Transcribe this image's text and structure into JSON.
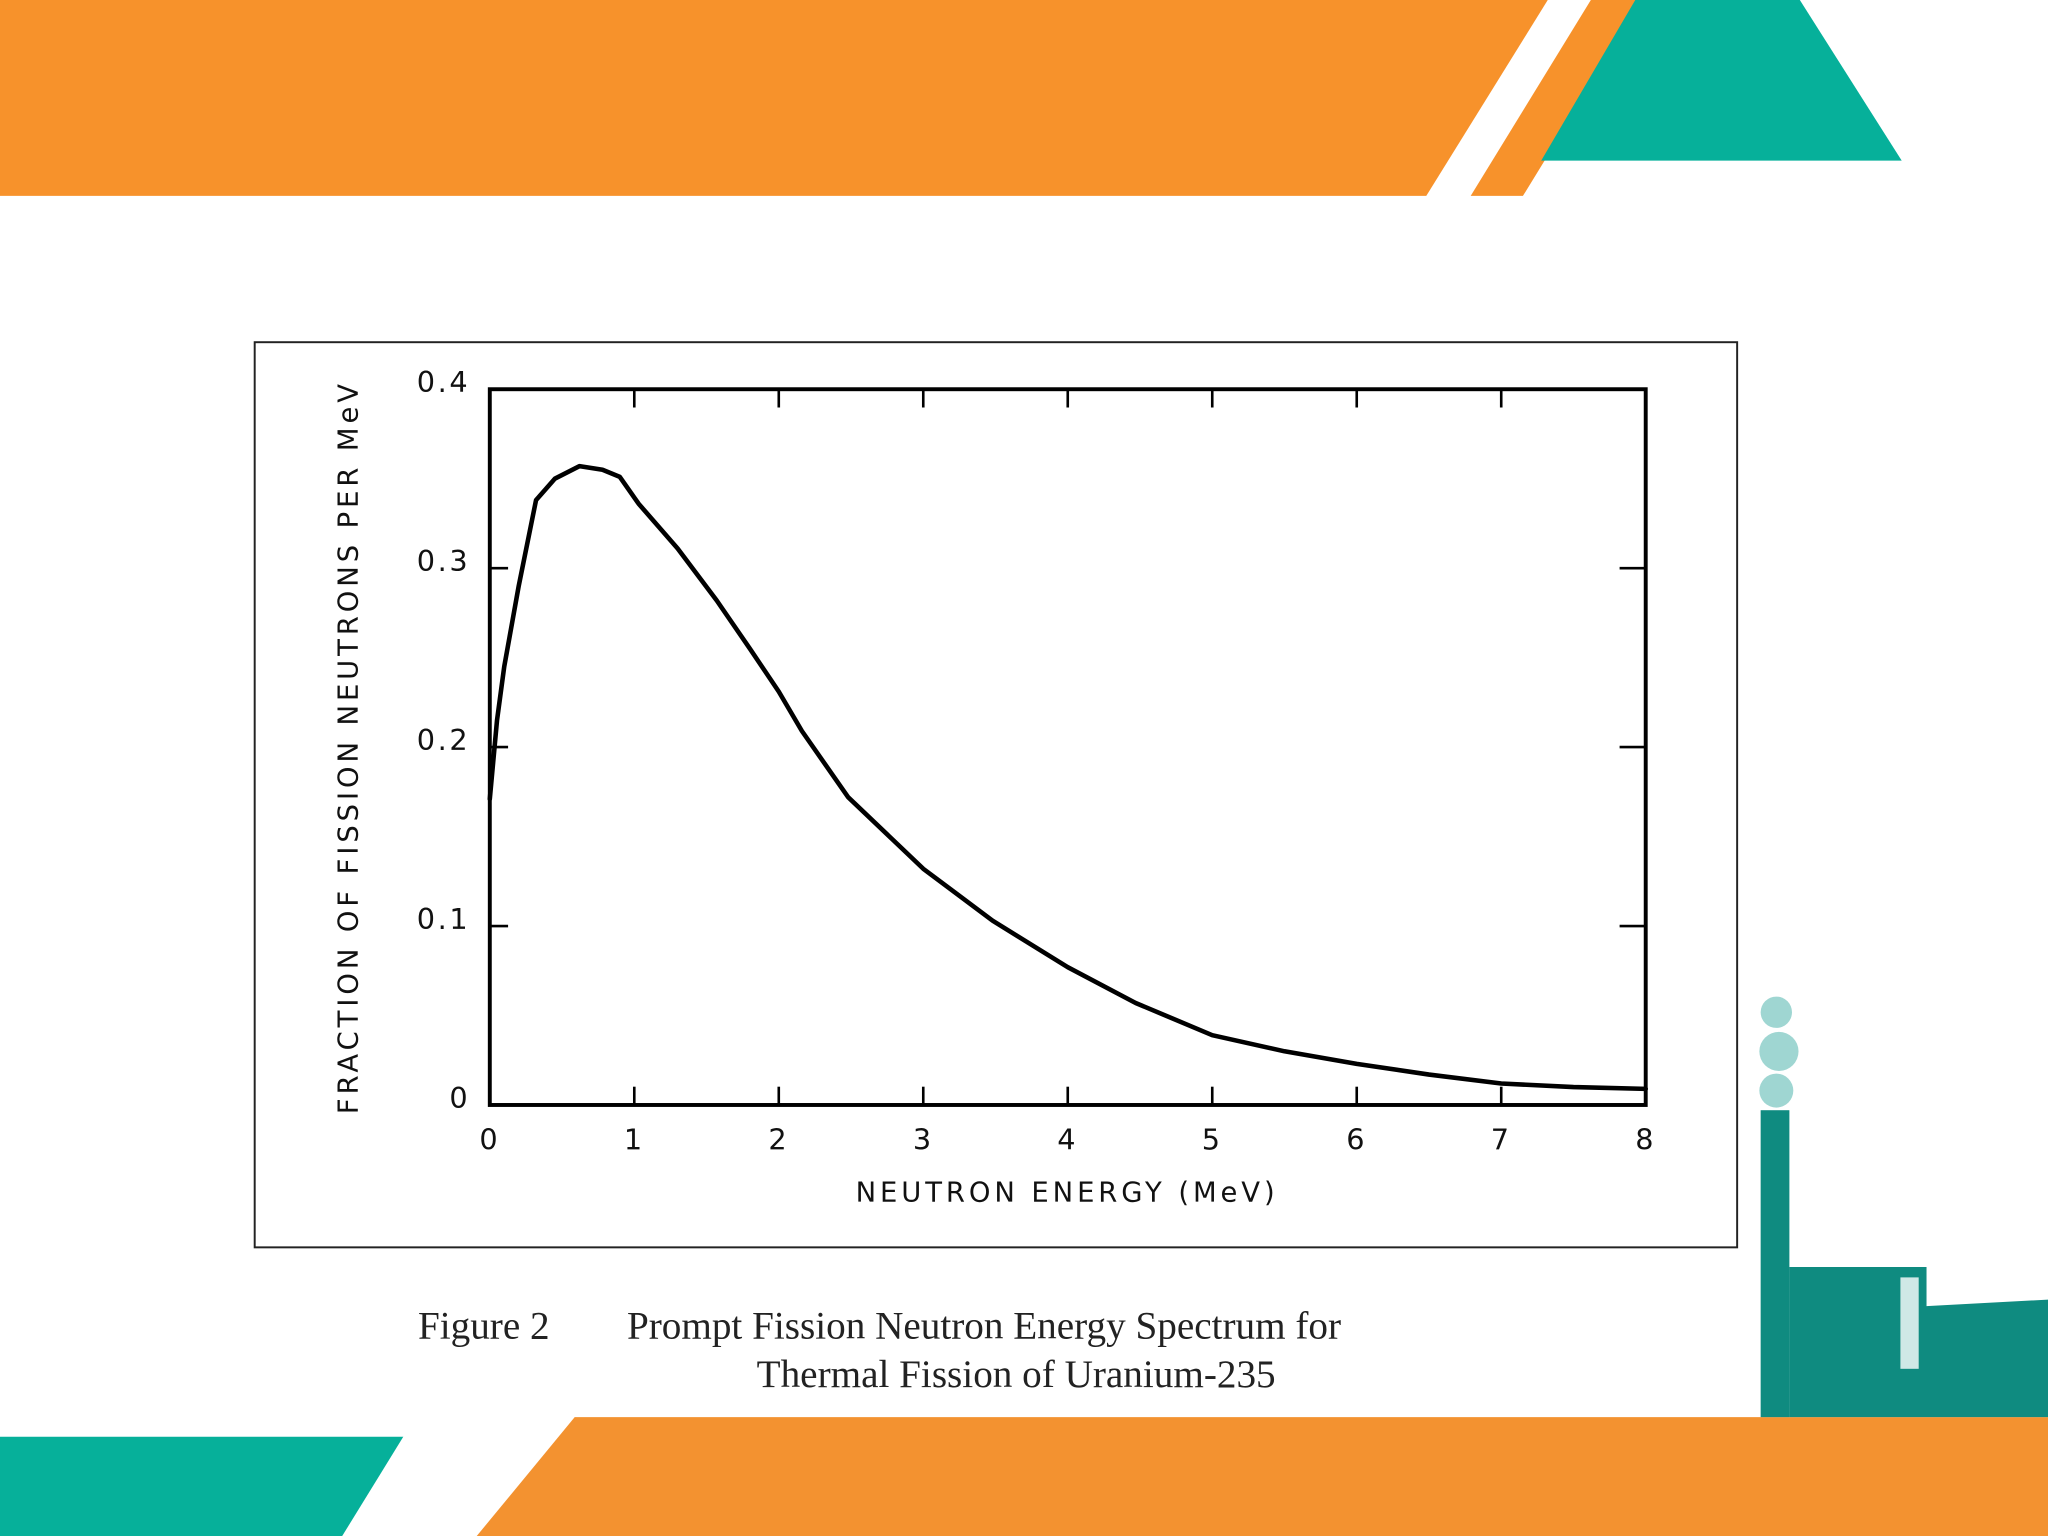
{
  "chart_data": {
    "type": "line",
    "x_label": "NEUTRON ENERGY (MeV)",
    "y_label": "FRACTION OF FISSION NEUTRONS PER MeV",
    "caption": [
      "Figure 2",
      "Prompt Fission Neutron Energy Spectrum for",
      "Thermal Fission of Uranium-235"
    ],
    "x": [
      0,
      0.05,
      0.1,
      0.2,
      0.32,
      0.45,
      0.62,
      0.78,
      0.9,
      1.03,
      1.3,
      1.57,
      1.8,
      2.0,
      2.16,
      2.48,
      3.0,
      3.48,
      4.0,
      4.47,
      5.0,
      5.5,
      6.0,
      6.5,
      7.0,
      7.5,
      8.0
    ],
    "y": [
      0.171,
      0.215,
      0.245,
      0.29,
      0.338,
      0.35,
      0.357,
      0.355,
      0.351,
      0.336,
      0.311,
      0.282,
      0.255,
      0.231,
      0.209,
      0.172,
      0.132,
      0.103,
      0.077,
      0.057,
      0.039,
      0.03,
      0.023,
      0.017,
      0.012,
      0.01,
      0.009
    ],
    "color": "#000000",
    "xlim": [
      0,
      8
    ],
    "ylim": [
      0,
      0.4
    ],
    "xticks": [
      0,
      1,
      2,
      3,
      4,
      5,
      6,
      7,
      8
    ],
    "yticks": [
      0,
      0.1,
      0.2,
      0.3,
      0.4
    ],
    "grid": false
  }
}
